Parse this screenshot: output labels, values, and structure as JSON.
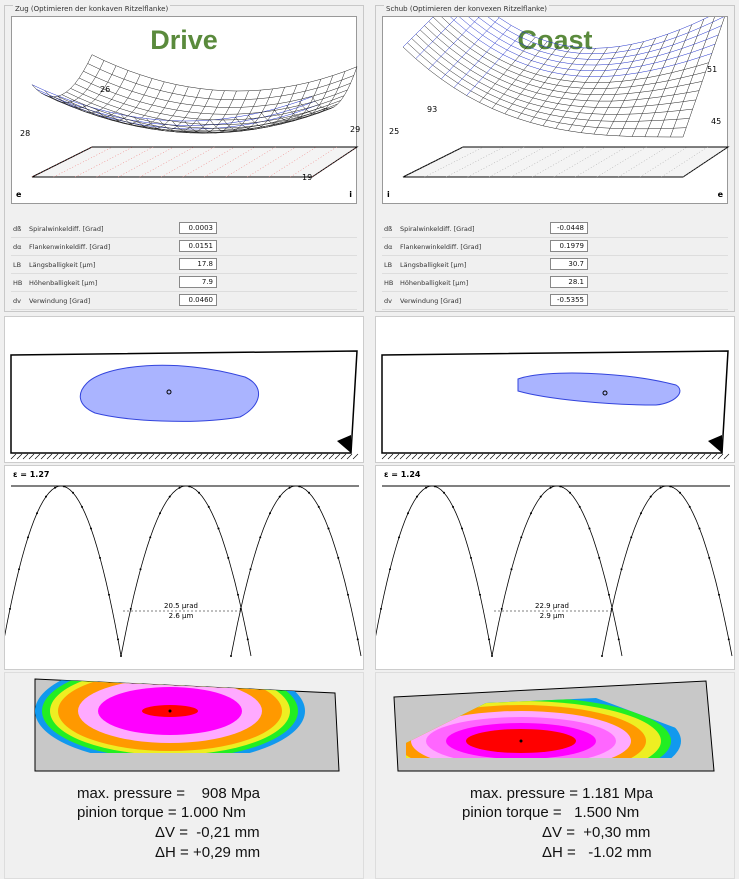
{
  "drive": {
    "legend": "Zug (Optimieren der konkaven Ritzelflanke)",
    "title": "Drive",
    "axis_left": "e",
    "axis_right": "i",
    "surface_labels": [
      "26",
      "28",
      "29",
      "19"
    ],
    "fields": [
      {
        "sym": "dß",
        "label": "Spiralwinkeldiff. [Grad]",
        "value": "0.0003"
      },
      {
        "sym": "dα",
        "label": "Flankenwinkeldiff. [Grad]",
        "value": "0.0151"
      },
      {
        "sym": "LB",
        "label": "Längsballigkeit [µm]",
        "value": "17.8"
      },
      {
        "sym": "HB",
        "label": "Höhenballigkeit [µm]",
        "value": "7.9"
      },
      {
        "sym": "dv",
        "label": "Verwindung [Grad]",
        "value": "0.0460"
      }
    ],
    "epsilon": "ε = 1.27",
    "te_urad": "20.5 µrad",
    "te_um": "2.6 µm",
    "results": [
      "max. pressure =    908 Mpa",
      "pinion torque = 1.000 Nm",
      "ΔV =  -0,21 mm",
      "ΔH = +0,29 mm"
    ]
  },
  "coast": {
    "legend": "Schub (Optimieren der konvexen Ritzelflanke)",
    "title": "Coast",
    "axis_left": "i",
    "axis_right": "e",
    "surface_labels": [
      "93",
      "25",
      "51",
      "45"
    ],
    "fields": [
      {
        "sym": "dß",
        "label": "Spiralwinkeldiff. [Grad]",
        "value": "-0.0448"
      },
      {
        "sym": "dα",
        "label": "Flankenwinkeldiff. [Grad]",
        "value": "0.1979"
      },
      {
        "sym": "LB",
        "label": "Längsballigkeit [µm]",
        "value": "30.7"
      },
      {
        "sym": "HB",
        "label": "Höhenballigkeit [µm]",
        "value": "28.1"
      },
      {
        "sym": "dv",
        "label": "Verwindung [Grad]",
        "value": "-0.5355"
      }
    ],
    "epsilon": "ε = 1.24",
    "te_urad": "22.9 µrad",
    "te_um": "2.9 µm",
    "results": [
      "max. pressure = 1.181 Mpa",
      "pinion torque =   1.500 Nm",
      "ΔV =  +0,30 mm",
      "ΔH =   -1.02 mm"
    ]
  },
  "colors": {
    "title": "#5a8a3c",
    "mesh_black": "#222222",
    "mesh_blue": "#2233cc",
    "contact": "#3344dd"
  }
}
